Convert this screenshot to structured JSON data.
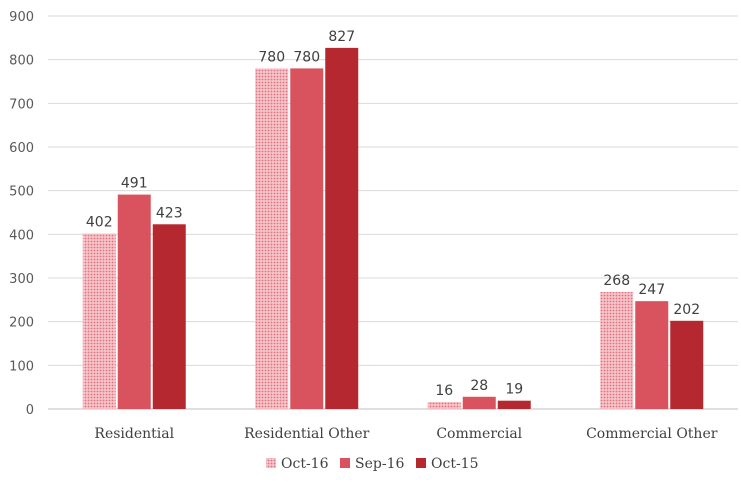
{
  "chart_data": {
    "type": "bar",
    "title": "",
    "xlabel": "",
    "ylabel": "",
    "categories": [
      "Residential",
      "Residential Other",
      "Commercial",
      "Commercial Other"
    ],
    "series": [
      {
        "name": "Oct-16",
        "values": [
          402,
          780,
          16,
          268
        ],
        "color": "#f4aeb5",
        "pattern": "dotted"
      },
      {
        "name": "Sep-16",
        "values": [
          491,
          780,
          28,
          247
        ],
        "color": "#d9535f"
      },
      {
        "name": "Oct-15",
        "values": [
          423,
          827,
          19,
          202
        ],
        "color": "#b5282f"
      }
    ],
    "ylim": [
      0,
      900
    ],
    "yticks": [
      0,
      100,
      200,
      300,
      400,
      500,
      600,
      700,
      800,
      900
    ],
    "grid": true,
    "legend": "bottom-center",
    "data_labels": true
  }
}
